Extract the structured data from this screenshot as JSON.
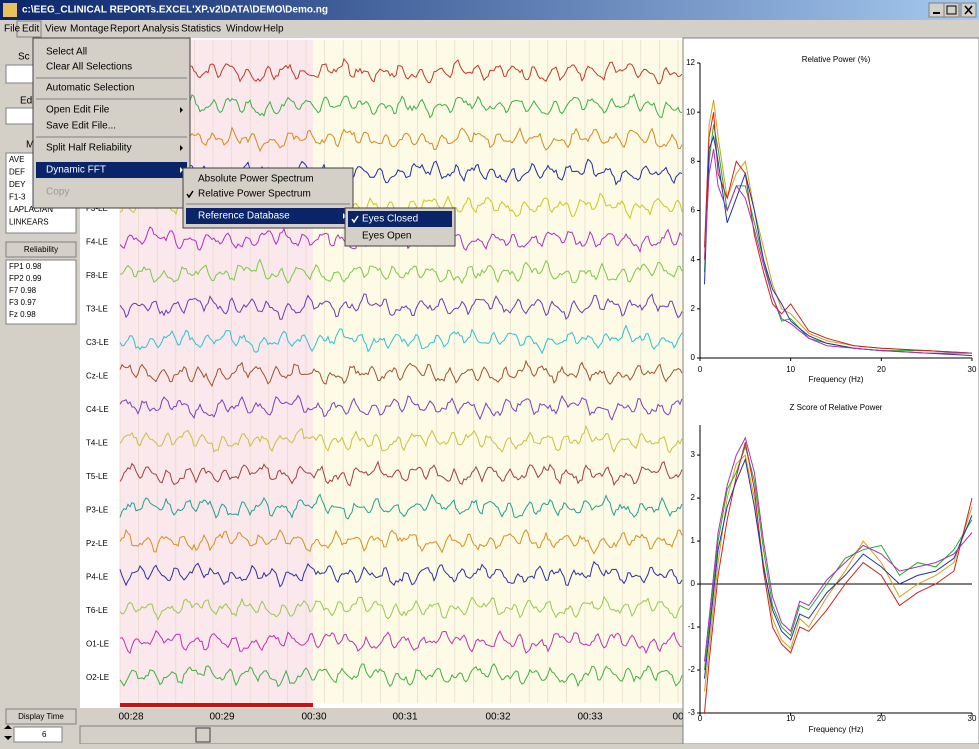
{
  "window_title": "c:\\EEG_CLINICAL REPORTs.EXCEL'XP.v2\\DATA\\DEMO\\Demo.ng",
  "menu_bar": [
    "File",
    "Edit",
    "View",
    "Montage",
    "Report",
    "Analysis",
    "Statistics",
    "Window",
    "Help"
  ],
  "left_panel": {
    "top_label": "Sc",
    "edit_label": "Ed",
    "montage_label": "M",
    "montages": [
      "AVE",
      "DEF",
      "DEY",
      "F1-3",
      "LAPLACIAN",
      "LINKEARS"
    ],
    "reliability_button": "Reliability",
    "reliability_list": [
      "FP1  0.98",
      "FP2  0.99",
      "F7  0.98",
      "F3  0.97",
      "Fz  0.98"
    ],
    "display_time_button": "Display Time",
    "display_time_value": "6"
  },
  "edit_menu": [
    "Select All",
    "Clear All Selections",
    "Automatic Selection",
    "Open Edit File",
    "Save Edit File...",
    "Split Half Reliability",
    "Dynamic FFT",
    "Copy"
  ],
  "fft_submenu": [
    "Absolute Power Spectrum",
    "Relative Power Spectrum",
    "Reference Database"
  ],
  "database_submenu": [
    "Eyes Closed",
    "Eyes Open"
  ],
  "channels": [
    "F3-LE",
    "F4-LE",
    "F8-LE",
    "T3-LE",
    "C3-LE",
    "Cz-LE",
    "C4-LE",
    "T4-LE",
    "T5-LE",
    "P3-LE",
    "Pz-LE",
    "P4-LE",
    "T6-LE",
    "O1-LE",
    "O2-LE"
  ],
  "time_labels": [
    "00:28",
    "00:29",
    "00:30",
    "00:31",
    "00:32",
    "00:33",
    "00"
  ],
  "chart_data": [
    {
      "type": "line",
      "title": "Relative Power (%)",
      "x_label": "Frequency (Hz)",
      "x": [
        0.5,
        1,
        1.5,
        2,
        3,
        4,
        5,
        6,
        7,
        8,
        9,
        10,
        12,
        14,
        17,
        20,
        25,
        30
      ],
      "series": [
        {
          "color": "#d4a017",
          "values": [
            4,
            9.5,
            10.5,
            9,
            6.5,
            7.5,
            8,
            6,
            4.5,
            3,
            2,
            1.8,
            1,
            0.7,
            0.5,
            0.4,
            0.3,
            0.2
          ]
        },
        {
          "color": "#22aa33",
          "values": [
            3.5,
            8,
            9.5,
            8.5,
            6,
            7,
            7,
            5.5,
            4,
            2.5,
            1.5,
            1.6,
            0.8,
            0.6,
            0.4,
            0.3,
            0.3,
            0.2
          ]
        },
        {
          "color": "#cc2222",
          "values": [
            4.5,
            9,
            10,
            7.5,
            6.5,
            8,
            7.5,
            5,
            3.5,
            2.2,
            1.8,
            2.2,
            1.1,
            0.8,
            0.5,
            0.4,
            0.3,
            0.2
          ]
        },
        {
          "color": "#2233aa",
          "values": [
            3,
            8.5,
            9,
            8,
            5.5,
            6.5,
            7.5,
            6,
            4,
            2.8,
            2.2,
            1.5,
            0.9,
            0.6,
            0.4,
            0.3,
            0.2,
            0.1
          ]
        },
        {
          "color": "#aa33aa",
          "values": [
            4,
            7.5,
            8.5,
            7,
            6,
            7,
            6.5,
            5.2,
            3.8,
            2.5,
            1.6,
            1.4,
            0.8,
            0.5,
            0.4,
            0.3,
            0.2,
            0.2
          ]
        }
      ],
      "xlim": [
        0,
        30
      ],
      "ylim": [
        0,
        12
      ],
      "xticks": [
        0,
        10,
        20,
        30
      ],
      "yticks": [
        0,
        2,
        4,
        6,
        8,
        10,
        12
      ]
    },
    {
      "type": "line",
      "title": "Z Score of Relative Power",
      "x_label": "Frequency (Hz)",
      "x": [
        0.5,
        1,
        2,
        3,
        4,
        5,
        6,
        7,
        8,
        9,
        10,
        11,
        12,
        14,
        16,
        18,
        20,
        22,
        24,
        26,
        28,
        30
      ],
      "series": [
        {
          "color": "#d4a017",
          "values": [
            -2.5,
            -1.5,
            0.5,
            2,
            2.8,
            3,
            2,
            0.5,
            -0.8,
            -1.3,
            -1.5,
            -0.8,
            -1,
            -0.3,
            0.3,
            1,
            0.5,
            -0.3,
            0,
            0.2,
            0.5,
            1.8
          ]
        },
        {
          "color": "#22aa33",
          "values": [
            -2,
            -1,
            1,
            2.2,
            2.6,
            3.2,
            2.4,
            0.8,
            -0.5,
            -1,
            -1.2,
            -0.5,
            -0.6,
            0,
            0.6,
            0.8,
            0.9,
            0.2,
            0.5,
            0.4,
            0.8,
            1.5
          ]
        },
        {
          "color": "#cc2222",
          "values": [
            -3,
            -1.8,
            0.2,
            1.5,
            2.5,
            3.3,
            2.2,
            0.3,
            -1,
            -1.4,
            -1.6,
            -1,
            -1.1,
            -0.6,
            0,
            0.5,
            0.2,
            -0.5,
            -0.2,
            0,
            0.3,
            2
          ]
        },
        {
          "color": "#2233aa",
          "values": [
            -2.2,
            -1.2,
            0.8,
            1.8,
            2.4,
            2.9,
            1.8,
            0.4,
            -0.6,
            -1.1,
            -1.3,
            -0.7,
            -0.8,
            -0.2,
            0.2,
            0.7,
            0.4,
            0,
            0.2,
            0.3,
            0.6,
            1.6
          ]
        },
        {
          "color": "#aa33aa",
          "values": [
            -1.8,
            -0.8,
            1.2,
            2.3,
            3,
            3.4,
            2.6,
            1,
            -0.3,
            -0.9,
            -1.1,
            -0.4,
            -0.5,
            0.1,
            0.5,
            0.9,
            0.7,
            0.3,
            0.4,
            0.5,
            0.7,
            1.2
          ]
        }
      ],
      "xlim": [
        0,
        30
      ],
      "ylim": [
        -3,
        3.7
      ],
      "xticks": [
        0,
        10,
        20,
        30
      ],
      "yticks": [
        -3,
        -2,
        -1,
        0,
        1,
        2,
        3
      ]
    }
  ]
}
